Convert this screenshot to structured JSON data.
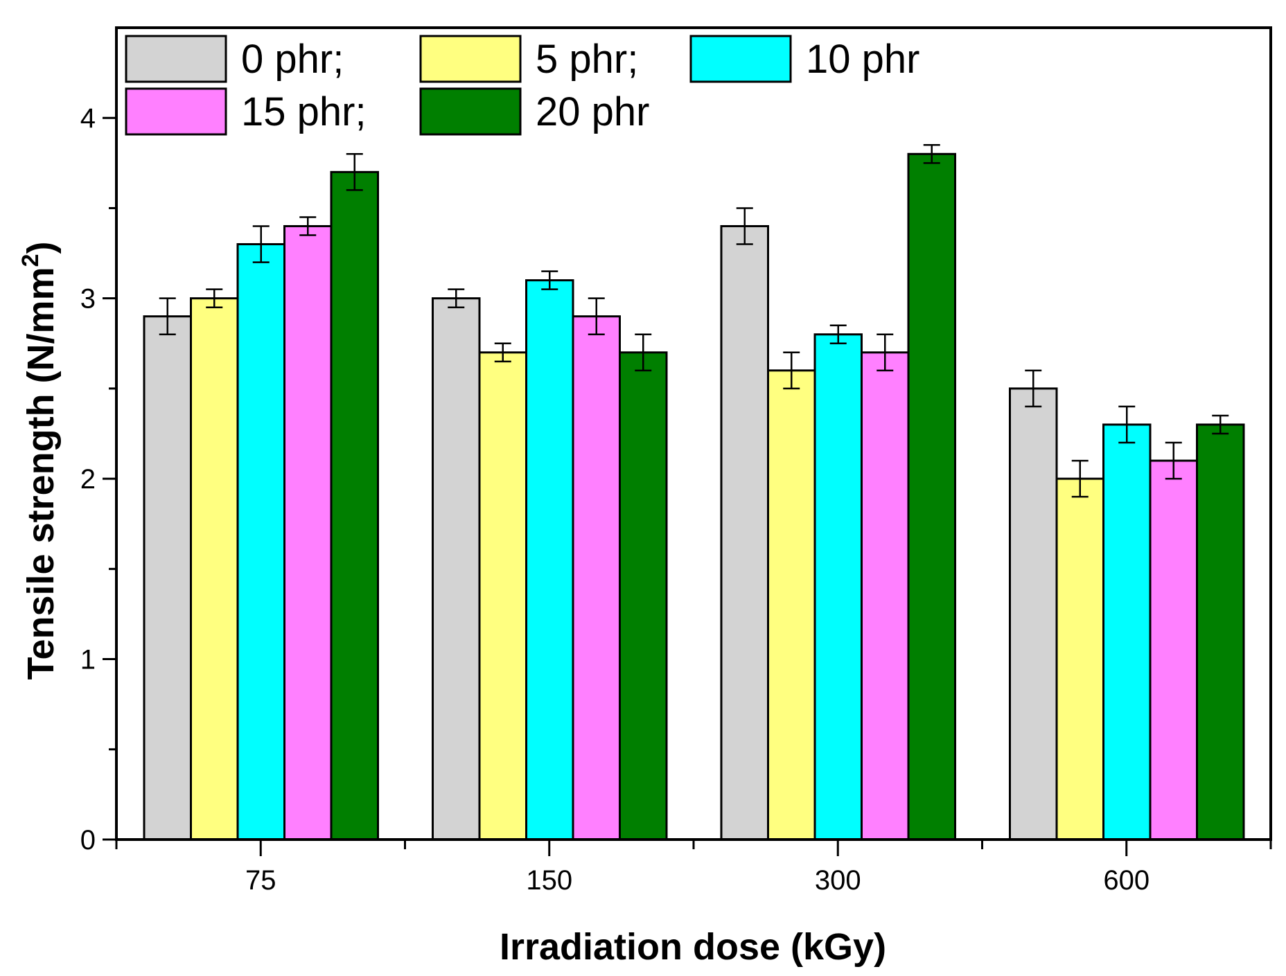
{
  "chart_data": {
    "type": "bar",
    "xlabel": "Irradiation dose (kGy)",
    "ylabel": "Tensile strength (N/mm",
    "ylabel_sup": "2",
    "ylabel_close": ")",
    "ylim": [
      0,
      4.5
    ],
    "yticks": [
      0,
      1,
      2,
      3,
      4
    ],
    "ytick_labels": [
      "0",
      "1",
      "2",
      "3",
      "4"
    ],
    "categories": [
      "75",
      "150",
      "300",
      "600"
    ],
    "legend_position": "top-left",
    "series": [
      {
        "name": "0 phr",
        "legend_label": "0 phr;",
        "color": "#d3d3d3",
        "values": [
          2.9,
          3.0,
          3.4,
          2.5
        ],
        "errors": [
          0.1,
          0.05,
          0.1,
          0.1
        ]
      },
      {
        "name": "5 phr",
        "legend_label": "5 phr;",
        "color": "#ffff80",
        "values": [
          3.0,
          2.7,
          2.6,
          2.0
        ],
        "errors": [
          0.05,
          0.05,
          0.1,
          0.1
        ]
      },
      {
        "name": "10 phr",
        "legend_label": "10 phr",
        "color": "#00ffff",
        "values": [
          3.3,
          3.1,
          2.8,
          2.3
        ],
        "errors": [
          0.1,
          0.05,
          0.05,
          0.1
        ]
      },
      {
        "name": "15 phr",
        "legend_label": "15 phr;",
        "color": "#ff80ff",
        "values": [
          3.4,
          2.9,
          2.7,
          2.1
        ],
        "errors": [
          0.05,
          0.1,
          0.1,
          0.1
        ]
      },
      {
        "name": "20 phr",
        "legend_label": "20 phr",
        "color": "#007f00",
        "values": [
          3.7,
          2.7,
          3.8,
          2.3
        ],
        "errors": [
          0.1,
          0.1,
          0.05,
          0.05
        ]
      }
    ]
  }
}
